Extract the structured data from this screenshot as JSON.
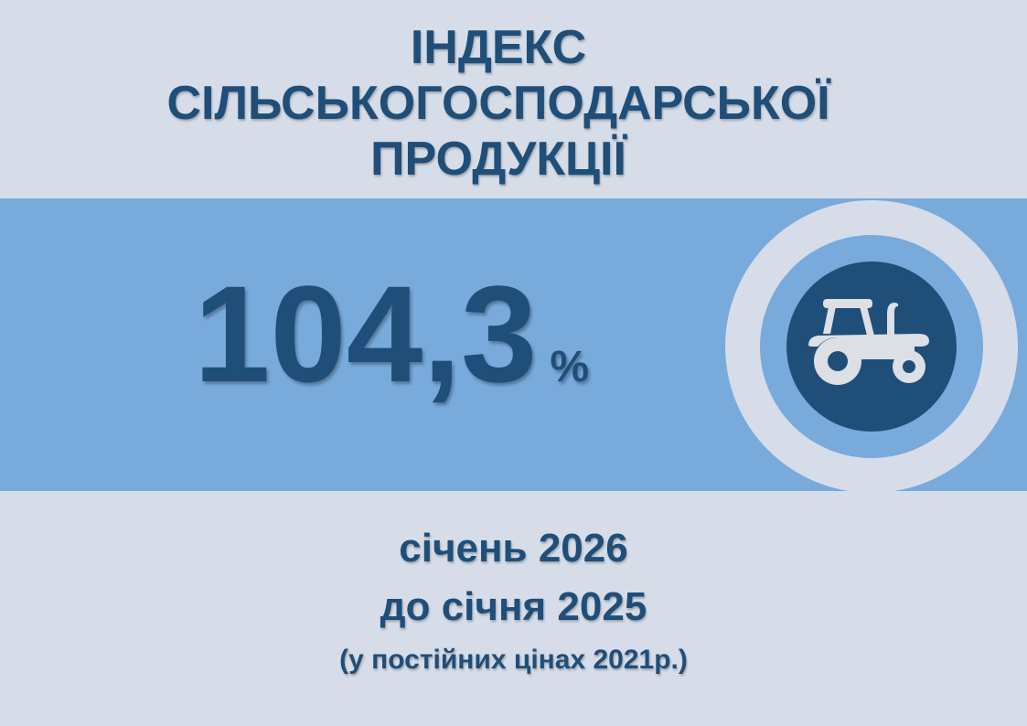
{
  "title": {
    "lines": [
      "ІНДЕКС",
      "СІЛЬСЬКОГОСПОДАРСЬКОЇ",
      "ПРОДУКЦІЇ"
    ]
  },
  "indicator": {
    "value": "104,3",
    "unit": "%",
    "icon": "tractor-icon"
  },
  "period": {
    "line1": "січень 2026",
    "line2": "до січня 2025",
    "note": "(у постійних цінах 2021р.)"
  },
  "colors": {
    "background": "#d6dde8",
    "band": "#78aadc",
    "accent": "#1f4e79"
  }
}
